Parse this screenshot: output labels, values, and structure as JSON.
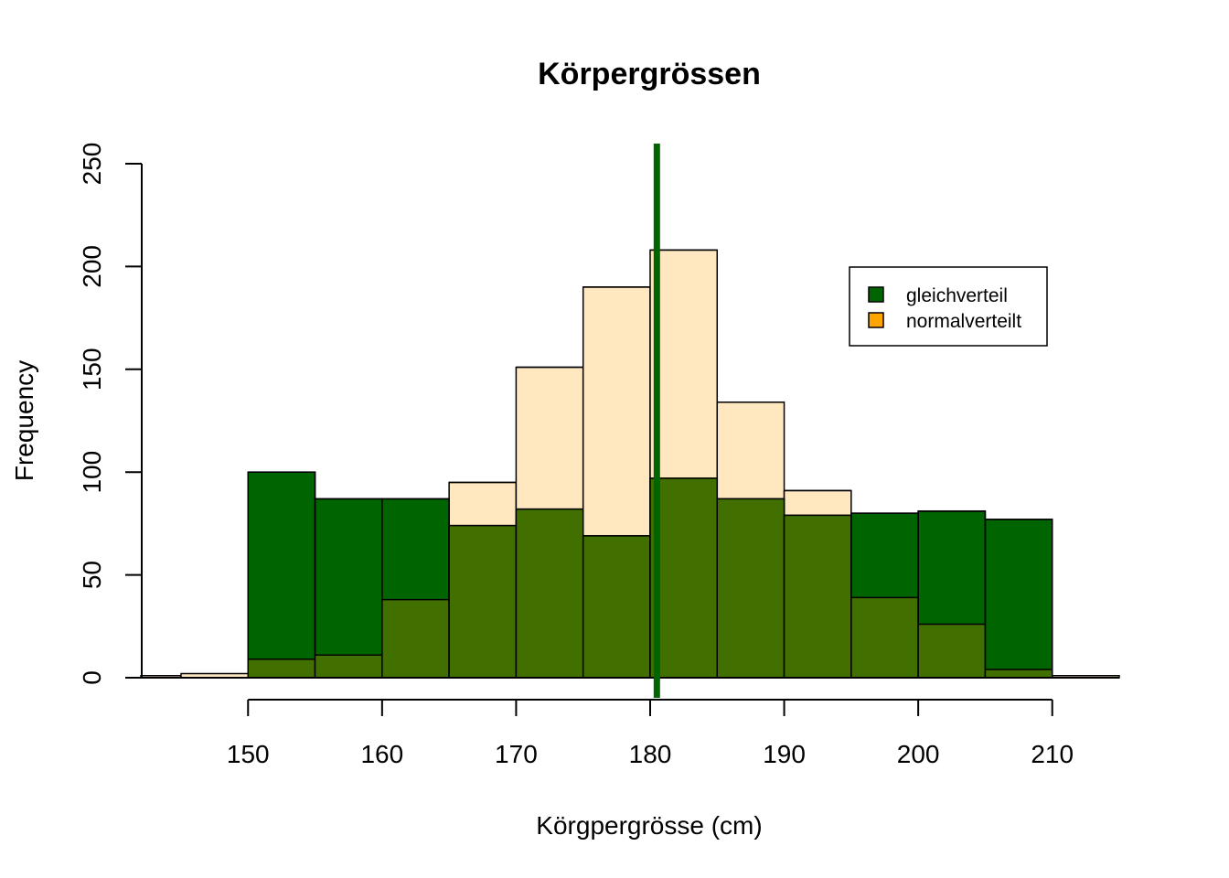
{
  "chart_data": {
    "type": "bar",
    "title": "Körpergrössen",
    "xlabel": "Körgpergrösse (cm)",
    "ylabel": "Frequency",
    "xlim": [
      142,
      215
    ],
    "ylim": [
      0,
      250
    ],
    "x_ticks": [
      150,
      160,
      170,
      180,
      190,
      200,
      210
    ],
    "y_ticks": [
      0,
      50,
      100,
      150,
      200,
      250
    ],
    "bin_width": 5,
    "series": [
      {
        "name": "gleichverteil",
        "color": "#006400",
        "bins": [
          {
            "start": 150,
            "value": 100
          },
          {
            "start": 155,
            "value": 87
          },
          {
            "start": 160,
            "value": 87
          },
          {
            "start": 165,
            "value": 74
          },
          {
            "start": 170,
            "value": 82
          },
          {
            "start": 175,
            "value": 69
          },
          {
            "start": 180,
            "value": 97
          },
          {
            "start": 185,
            "value": 87
          },
          {
            "start": 190,
            "value": 79
          },
          {
            "start": 195,
            "value": 80
          },
          {
            "start": 200,
            "value": 81
          },
          {
            "start": 205,
            "value": 77
          }
        ]
      },
      {
        "name": "normalverteilt",
        "color": "#FFA500",
        "fill_color": "#FFE8C0",
        "bins": [
          {
            "start": 140,
            "value": 1
          },
          {
            "start": 145,
            "value": 2
          },
          {
            "start": 150,
            "value": 9
          },
          {
            "start": 155,
            "value": 11
          },
          {
            "start": 160,
            "value": 38
          },
          {
            "start": 165,
            "value": 95
          },
          {
            "start": 170,
            "value": 151
          },
          {
            "start": 175,
            "value": 190
          },
          {
            "start": 180,
            "value": 208
          },
          {
            "start": 185,
            "value": 134
          },
          {
            "start": 190,
            "value": 91
          },
          {
            "start": 195,
            "value": 39
          },
          {
            "start": 200,
            "value": 26
          },
          {
            "start": 205,
            "value": 4
          },
          {
            "start": 210,
            "value": 1
          }
        ]
      }
    ],
    "overlap_color": "#417000",
    "mean_line": {
      "x": 180.5,
      "color": "#006400"
    },
    "legend": {
      "position": "top-right",
      "items": [
        {
          "label": "gleichverteil",
          "color": "#006400"
        },
        {
          "label": "normalverteilt",
          "color": "#FFA500"
        }
      ]
    }
  }
}
